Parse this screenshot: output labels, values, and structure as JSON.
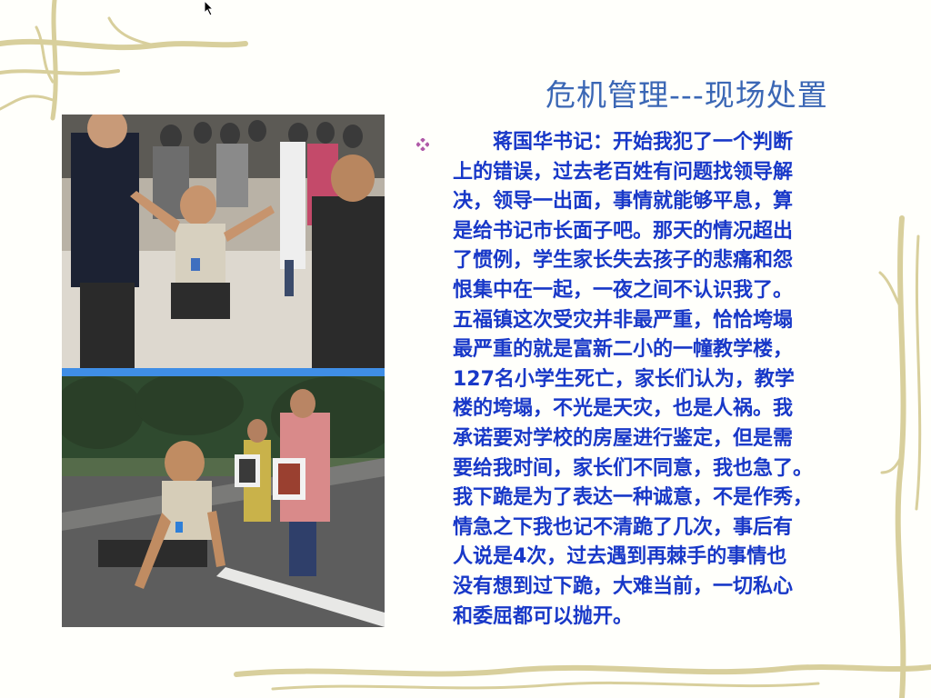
{
  "slide": {
    "title": "危机管理---现场处置",
    "bullet_icon": "diamond-bullet-icon",
    "body_lines": [
      "　　蒋国华书记：开始我犯了一个判断",
      "上的错误，过去老百姓有问题找领导解",
      "决，领导一出面，事情就能够平息，算",
      "是给书记市长面子吧。那天的情况超出",
      "了惯例，学生家长失去孩子的悲痛和怨",
      "恨集中在一起，一夜之间不认识我了。",
      "五福镇这次受灾并非最严重，恰恰垮塌",
      "最严重的就是富新二小的一幢教学楼，",
      "127名小学生死亡，家长们认为，教学",
      "楼的垮塌，不光是天灾，也是人祸。我",
      "承诺要对学校的房屋进行鉴定，但是需",
      "要给我时间，家长们不同意，我也急了。",
      "我下跪是为了表达一种诚意，不是作秀，",
      "情急之下我也记不清跪了几次，事后有",
      "人说是4次，过去遇到再棘手的事情也",
      "没有想到过下跪，大难当前，一切私心",
      "和委屈都可以抛开。"
    ]
  },
  "colors": {
    "title": "#3b67b5",
    "body": "#1838c8",
    "bullet": "#b05aa8",
    "separator": "#3f8ee6",
    "vine": "#d8cf9c"
  }
}
